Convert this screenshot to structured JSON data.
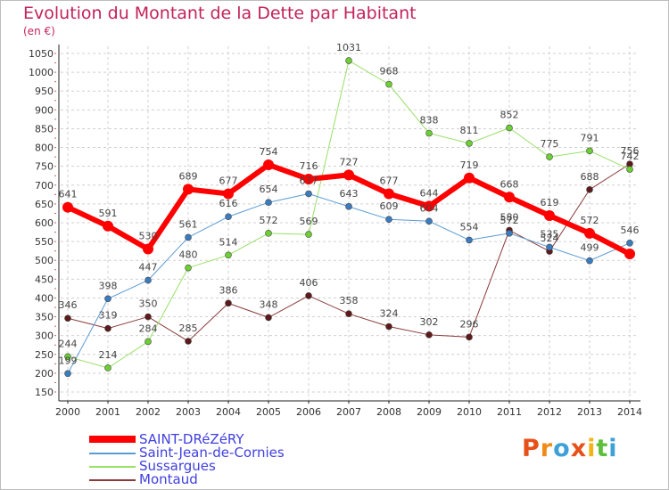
{
  "title": "Evolution du Montant de la Dette par Habitant",
  "subtitle": "(en €)",
  "logo": "Proxiti",
  "colors": {
    "title": "#c2235a",
    "grid": "#d0d0d0",
    "axis": "#222222",
    "legend_text": "#4040e0"
  },
  "chart_data": {
    "type": "line",
    "title": "Evolution du Montant de la Dette par Habitant",
    "subtitle": "(en €)",
    "xlabel": "",
    "ylabel": "",
    "ylim": [
      150,
      1050
    ],
    "ytick_step": 50,
    "yticks": [
      "150",
      "200",
      "250",
      "300",
      "350",
      "400",
      "450",
      "500",
      "550",
      "600",
      "650",
      "700",
      "750",
      "800",
      "850",
      "900",
      "950",
      "1000",
      "1050"
    ],
    "x": [
      "2000",
      "2001",
      "2002",
      "2003",
      "2004",
      "2005",
      "2006",
      "2007",
      "2008",
      "2009",
      "2010",
      "2011",
      "2012",
      "2013",
      "2014"
    ],
    "grid": true,
    "legend_position": "bottom-left",
    "series": [
      {
        "name": "SAINT-DRéZéRY",
        "color": "#ff0000",
        "marker_color": "#ff0000",
        "width": 6,
        "values": [
          641,
          591,
          530,
          689,
          677,
          754,
          716,
          727,
          677,
          644,
          719,
          668,
          619,
          572,
          517
        ],
        "labels": [
          "641",
          "591",
          "530",
          "689",
          "677",
          "754",
          "716",
          "727",
          "677",
          "644",
          "719",
          "668",
          "619",
          "572",
          ""
        ]
      },
      {
        "name": "Saint-Jean-de-Cornies",
        "color": "#5b9bd5",
        "marker_color": "#3a7cc0",
        "width": 1,
        "values": [
          199,
          398,
          447,
          561,
          616,
          654,
          677,
          643,
          609,
          604,
          554,
          572,
          535,
          499,
          546
        ],
        "labels": [
          "199",
          "398",
          "447",
          "561",
          "616",
          "654",
          "677",
          "643",
          "609",
          "604",
          "554",
          "572",
          "535",
          "499",
          "546"
        ]
      },
      {
        "name": "Sussargues",
        "color": "#99e066",
        "marker_color": "#6ccf33",
        "width": 1,
        "values": [
          244,
          214,
          284,
          480,
          514,
          572,
          569,
          1031,
          968,
          838,
          811,
          852,
          775,
          791,
          742
        ],
        "labels": [
          "244",
          "214",
          "284",
          "480",
          "514",
          "572",
          "569",
          "1031",
          "968",
          "838",
          "811",
          "852",
          "775",
          "791",
          "742"
        ]
      },
      {
        "name": "Montaud",
        "color": "#8b3a3a",
        "marker_color": "#5e1a1a",
        "width": 1,
        "values": [
          346,
          319,
          350,
          285,
          386,
          348,
          406,
          358,
          324,
          302,
          296,
          580,
          524,
          688,
          756
        ],
        "labels": [
          "346",
          "319",
          "350",
          "285",
          "386",
          "348",
          "406",
          "358",
          "324",
          "302",
          "296",
          "580",
          "524",
          "688",
          "756"
        ]
      }
    ]
  }
}
